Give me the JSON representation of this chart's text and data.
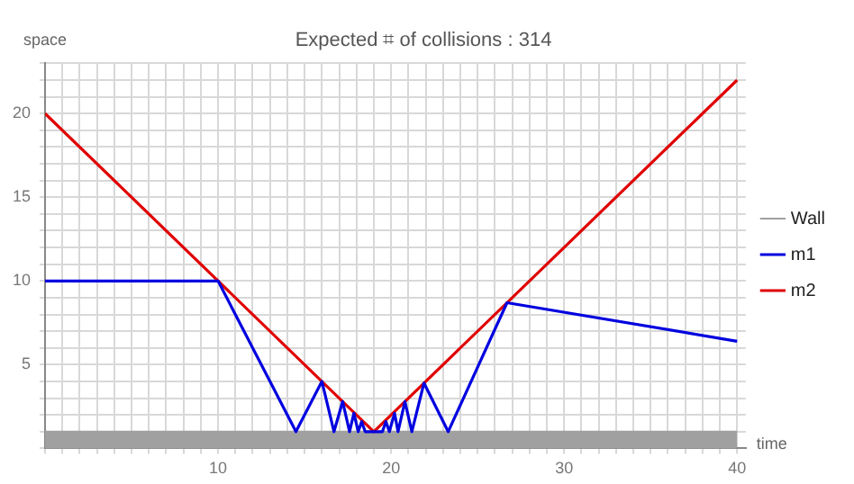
{
  "chart_data": {
    "type": "line",
    "title": "Expected ⌗ of collisions : 314",
    "xlabel": "time",
    "ylabel": "space",
    "xlim": [
      0,
      40.5
    ],
    "ylim": [
      0,
      23
    ],
    "xticks": [
      {
        "value": 0,
        "label": null
      },
      {
        "value": 1,
        "label": null
      },
      {
        "value": 2,
        "label": null
      },
      {
        "value": 3,
        "label": null
      },
      {
        "value": 4,
        "label": null
      },
      {
        "value": 5,
        "label": null
      },
      {
        "value": 6,
        "label": null
      },
      {
        "value": 7,
        "label": null
      },
      {
        "value": 8,
        "label": null
      },
      {
        "value": 9,
        "label": null
      },
      10,
      {
        "value": 11,
        "label": null
      },
      {
        "value": 12,
        "label": null
      },
      {
        "value": 13,
        "label": null
      },
      {
        "value": 14,
        "label": null
      },
      {
        "value": 15,
        "label": null
      },
      {
        "value": 16,
        "label": null
      },
      {
        "value": 17,
        "label": null
      },
      {
        "value": 18,
        "label": null
      },
      {
        "value": 19,
        "label": null
      },
      20,
      {
        "value": 21,
        "label": null
      },
      {
        "value": 22,
        "label": null
      },
      {
        "value": 23,
        "label": null
      },
      {
        "value": 24,
        "label": null
      },
      {
        "value": 25,
        "label": null
      },
      {
        "value": 26,
        "label": null
      },
      {
        "value": 27,
        "label": null
      },
      {
        "value": 28,
        "label": null
      },
      {
        "value": 29,
        "label": null
      },
      30,
      {
        "value": 31,
        "label": null
      },
      {
        "value": 32,
        "label": null
      },
      {
        "value": 33,
        "label": null
      },
      {
        "value": 34,
        "label": null
      },
      {
        "value": 35,
        "label": null
      },
      {
        "value": 36,
        "label": null
      },
      {
        "value": 37,
        "label": null
      },
      {
        "value": 38,
        "label": null
      },
      {
        "value": 39,
        "label": null
      },
      40
    ],
    "yticks": [
      {
        "value": 0,
        "label": null
      },
      {
        "value": 1,
        "label": null
      },
      {
        "value": 2,
        "label": null
      },
      {
        "value": 3,
        "label": null
      },
      {
        "value": 4,
        "label": null
      },
      5,
      {
        "value": 6,
        "label": null
      },
      {
        "value": 7,
        "label": null
      },
      {
        "value": 8,
        "label": null
      },
      {
        "value": 9,
        "label": null
      },
      10,
      {
        "value": 11,
        "label": null
      },
      {
        "value": 12,
        "label": null
      },
      {
        "value": 13,
        "label": null
      },
      {
        "value": 14,
        "label": null
      },
      15,
      {
        "value": 16,
        "label": null
      },
      {
        "value": 17,
        "label": null
      },
      {
        "value": 18,
        "label": null
      },
      {
        "value": 19,
        "label": null
      },
      20,
      {
        "value": 21,
        "label": null
      },
      {
        "value": 22,
        "label": null
      },
      {
        "value": 23,
        "label": null
      }
    ],
    "grid": true,
    "legend": "right",
    "marker": "none",
    "line_style": "solid",
    "series": [
      {
        "name": "Wall",
        "type": "area",
        "color": "#a0a0a0",
        "x": [
          0,
          40
        ],
        "values": [
          1,
          1
        ]
      },
      {
        "name": "m1",
        "color": "#0000e0",
        "x": [
          0,
          10,
          14.5,
          16,
          16.7,
          17.2,
          17.6,
          17.85,
          18.1,
          18.3,
          18.5,
          19,
          19.5,
          19.7,
          19.9,
          20.2,
          20.4,
          20.8,
          21.2,
          21.9,
          23.3,
          26.7,
          40
        ],
        "values": [
          10,
          10,
          1,
          4,
          1,
          2.8,
          1,
          2.1,
          1,
          1.6,
          1,
          1,
          1,
          1.6,
          1,
          2.1,
          1,
          2.8,
          1,
          3.9,
          1,
          8.7,
          6.4
        ]
      },
      {
        "name": "m2",
        "color": "#e00000",
        "x": [
          0,
          19,
          40
        ],
        "values": [
          20,
          1,
          22
        ]
      }
    ]
  }
}
